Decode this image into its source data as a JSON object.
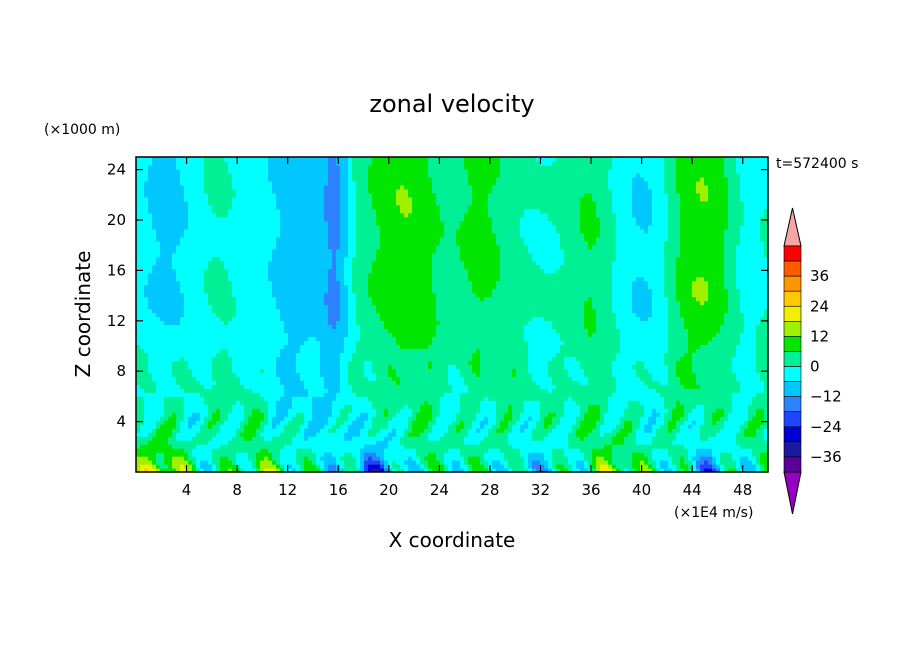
{
  "chart_data": {
    "type": "heatmap",
    "title": "zonal velocity",
    "xlabel": "X coordinate",
    "ylabel": "Z coordinate",
    "y_unit": "(×1000 m)",
    "x_unit": "(×1E4 m/s)",
    "time_label": "t=572400 s",
    "x_ticks": [
      4,
      8,
      12,
      16,
      20,
      24,
      28,
      32,
      36,
      40,
      44,
      48
    ],
    "y_ticks": [
      4,
      8,
      12,
      16,
      20,
      24
    ],
    "xlim": [
      0,
      50
    ],
    "ylim": [
      0,
      25
    ],
    "colorbar": {
      "tick_labels": [
        36,
        24,
        12,
        0,
        -12,
        -24,
        -36
      ],
      "levels": [
        -42,
        -36,
        -30,
        -24,
        -18,
        -12,
        -6,
        0,
        6,
        12,
        18,
        24,
        30,
        36,
        42
      ],
      "colors": [
        "#5a0096",
        "#1a1aa0",
        "#0000d2",
        "#1e46ff",
        "#2d82ff",
        "#00c8ff",
        "#00ffff",
        "#00f096",
        "#00e600",
        "#a0f000",
        "#f0f000",
        "#ffc800",
        "#ff9600",
        "#ff5a00",
        "#ff0000"
      ],
      "under_color": "#9600c0",
      "over_color": "#f4a6a6"
    },
    "field_description": "2D x-z field of zonal velocity; near-zero mean with positive (yellow) columns near x≈18-26 and x≈43-47 aloft, negative (blue) filaments near x≈15-17, alternating small-scale cells below z≈10 and strong signals near the surface."
  }
}
